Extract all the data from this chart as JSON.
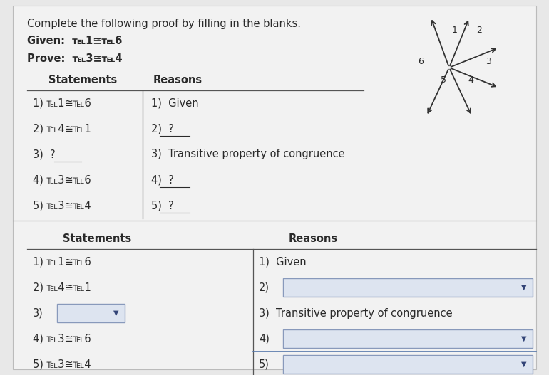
{
  "background_color": "#e8e8e8",
  "page_background": "#f2f2f2",
  "title": "Complete the following proof by filling in the blanks.",
  "given": "Given:  ℡1≅℡6",
  "prove": "Prove:  ℡3≅℡4",
  "top_table": {
    "headers": [
      "Statements",
      "Reasons"
    ],
    "rows": [
      [
        "1) ℡1≅℡6",
        "1)  Given"
      ],
      [
        "2) ℡4≅℡1",
        "2)  ?"
      ],
      [
        "3)  ?",
        "3)  Transitive property of congruence"
      ],
      [
        "4) ℡3≅℡6",
        "4)  ?"
      ],
      [
        "5) ℡3≅℡4",
        "5)  ?"
      ]
    ]
  },
  "bottom_table": {
    "headers": [
      "Statements",
      "Reasons"
    ],
    "rows": [
      [
        "1) ℡1≅℡6",
        "1)  Given",
        false,
        false
      ],
      [
        "2) ℡4≅℡1",
        "2)",
        false,
        true
      ],
      [
        "3)",
        "3)  Transitive property of congruence",
        true,
        false
      ],
      [
        "4) ℡3≅℡6",
        "4)",
        false,
        true
      ],
      [
        "5) ℡3≅℡4",
        "5)",
        false,
        true
      ]
    ]
  },
  "text_color": "#2a2a2a",
  "line_color": "#888888",
  "dropdown_fill": "#dde4f0",
  "dropdown_border": "#8899bb",
  "dropdown_arrow_color": "#334477"
}
